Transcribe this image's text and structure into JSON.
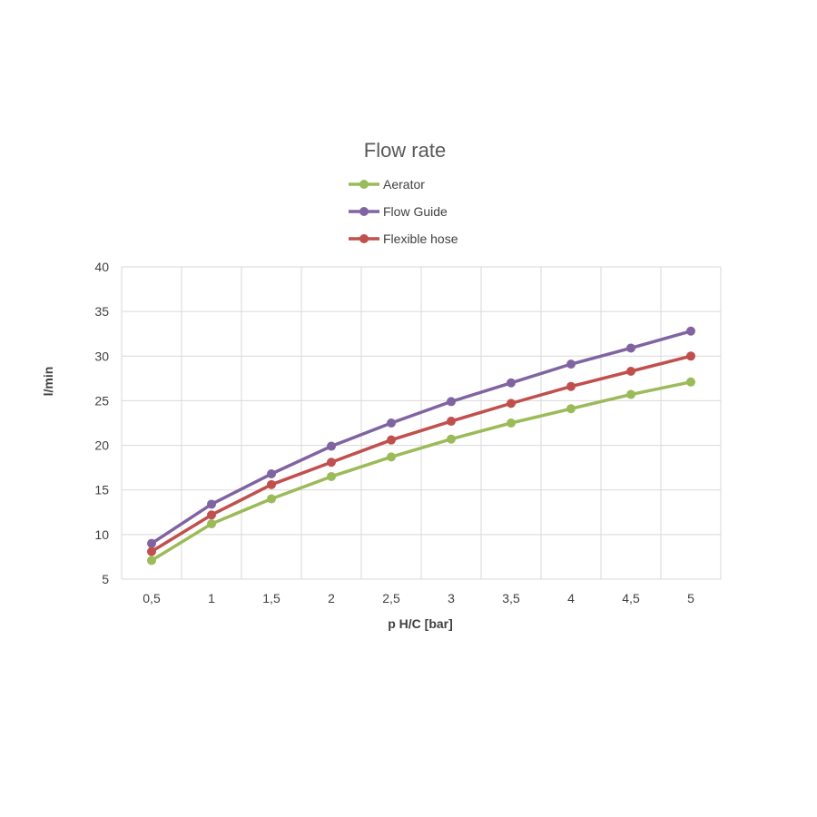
{
  "chart_data": {
    "type": "line",
    "title": "Flow rate",
    "xlabel": "p H/C [bar]",
    "ylabel": "l/min",
    "categories": [
      "0,5",
      "1",
      "1,5",
      "2",
      "2,5",
      "3",
      "3,5",
      "4",
      "4,5",
      "5"
    ],
    "y_ticks": [
      "5",
      "10",
      "15",
      "20",
      "25",
      "30",
      "35",
      "40"
    ],
    "ylim": [
      5,
      40
    ],
    "grid": true,
    "legend_position": "top",
    "series": [
      {
        "name": "Aerator",
        "color": "#9bbb59",
        "values": [
          7.1,
          11.2,
          14.0,
          16.5,
          18.7,
          20.7,
          22.5,
          24.1,
          25.7,
          27.1
        ]
      },
      {
        "name": "Flow Guide",
        "color": "#8064a2",
        "values": [
          9.0,
          13.4,
          16.8,
          19.9,
          22.5,
          24.9,
          27.0,
          29.1,
          30.9,
          32.8
        ]
      },
      {
        "name": "Flexible hose",
        "color": "#c0504d",
        "values": [
          8.1,
          12.2,
          15.6,
          18.1,
          20.6,
          22.7,
          24.7,
          26.6,
          28.3,
          30.0
        ]
      }
    ]
  }
}
